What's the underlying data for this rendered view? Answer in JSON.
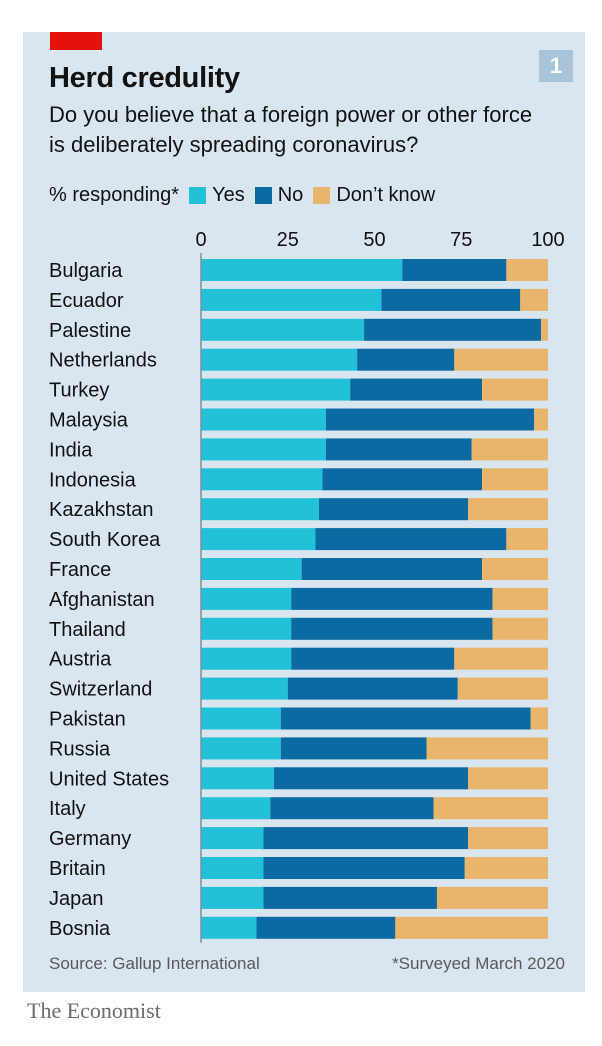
{
  "header": {
    "title": "Herd credulity",
    "subtitle": "Do you believe that a foreign power or other force is deliberately spreading coronavirus?",
    "figure_number": "1"
  },
  "legend": {
    "label": "% responding*",
    "items": [
      "Yes",
      "No",
      "Don’t know"
    ]
  },
  "footer": {
    "source": "Source: Gallup International",
    "note": "*Surveyed March 2020",
    "brand": "The Economist"
  },
  "colors": {
    "yes": "#23c1d8",
    "no": "#0a6aa1",
    "dont_know": "#e9b46c",
    "brand_red": "#e3120b",
    "gridline": "#7f8f99"
  },
  "chart_data": {
    "type": "bar",
    "orientation": "horizontal",
    "stacked": true,
    "xlim": [
      0,
      100
    ],
    "xticks": [
      0,
      25,
      50,
      75,
      100
    ],
    "categories": [
      "Bulgaria",
      "Ecuador",
      "Palestine",
      "Netherlands",
      "Turkey",
      "Malaysia",
      "India",
      "Indonesia",
      "Kazakhstan",
      "South Korea",
      "France",
      "Afghanistan",
      "Thailand",
      "Austria",
      "Switzerland",
      "Pakistan",
      "Russia",
      "United States",
      "Italy",
      "Germany",
      "Britain",
      "Japan",
      "Bosnia"
    ],
    "series": [
      {
        "name": "Yes",
        "values": [
          58,
          52,
          47,
          45,
          43,
          36,
          36,
          35,
          34,
          33,
          29,
          26,
          26,
          26,
          25,
          23,
          23,
          21,
          20,
          18,
          18,
          18,
          16
        ]
      },
      {
        "name": "No",
        "values": [
          30,
          40,
          51,
          28,
          38,
          60,
          42,
          46,
          43,
          55,
          52,
          58,
          58,
          47,
          49,
          72,
          42,
          56,
          47,
          59,
          58,
          50,
          40
        ]
      },
      {
        "name": "Don’t know",
        "values": [
          12,
          8,
          2,
          27,
          19,
          4,
          22,
          19,
          23,
          12,
          19,
          16,
          16,
          27,
          26,
          5,
          35,
          23,
          33,
          23,
          24,
          32,
          44
        ]
      }
    ]
  }
}
